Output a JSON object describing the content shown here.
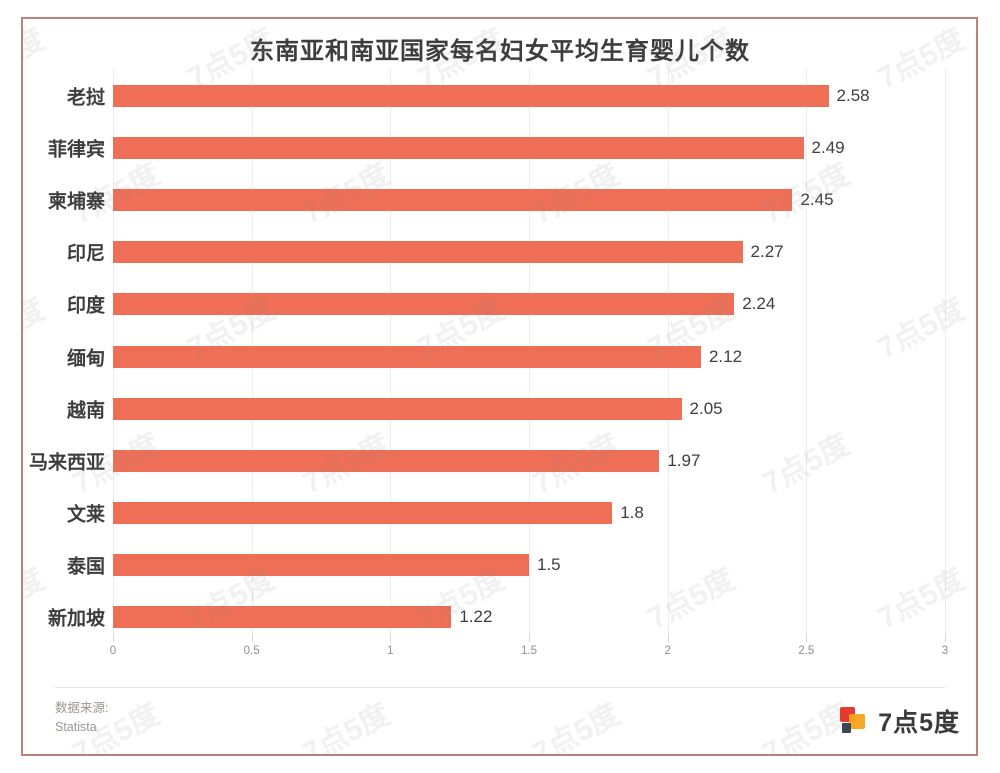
{
  "chart_data": {
    "type": "bar",
    "orientation": "horizontal",
    "title": "东南亚和南亚国家每名妇女平均生育婴儿个数",
    "categories": [
      "老挝",
      "菲律宾",
      "柬埔寨",
      "印尼",
      "印度",
      "缅甸",
      "越南",
      "马来西亚",
      "文莱",
      "泰国",
      "新加坡"
    ],
    "values": [
      2.58,
      2.49,
      2.45,
      2.27,
      2.24,
      2.12,
      2.05,
      1.97,
      1.8,
      1.5,
      1.22
    ],
    "value_labels": [
      "2.58",
      "2.49",
      "2.45",
      "2.27",
      "2.24",
      "2.12",
      "2.05",
      "1.97",
      "1.8",
      "1.5",
      "1.22"
    ],
    "xlabel": "",
    "ylabel": "",
    "xlim": [
      0,
      3
    ],
    "x_ticks": [
      0,
      0.5,
      1,
      1.5,
      2,
      2.5,
      3
    ],
    "x_tick_labels": [
      "0",
      "0.5",
      "1",
      "1.5",
      "2",
      "2.5",
      "3"
    ],
    "grid": true,
    "legend": false,
    "bar_color": "#ef6e56"
  },
  "footer": {
    "source_label": "数据来源:",
    "source_name": "Statista",
    "brand_text": "7点5度"
  },
  "watermark": {
    "text": "7点5度"
  },
  "colors": {
    "bar": "#ef6e56",
    "frame_border": "#b9837a",
    "gridline": "#ededed",
    "logo_red": "#e23b30",
    "logo_orange": "#f6a21c",
    "logo_dark": "#3c4756"
  }
}
